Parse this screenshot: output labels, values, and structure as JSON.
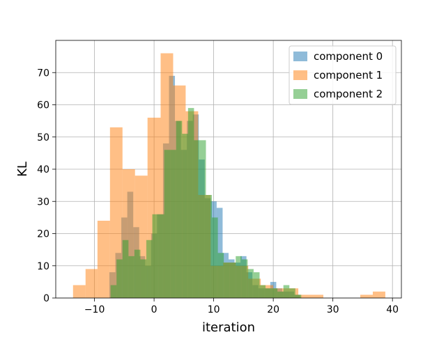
{
  "chart_data": {
    "type": "histogram",
    "xlabel": "iteration",
    "ylabel": "KL",
    "xlim": [
      -16.5,
      41.5
    ],
    "ylim": [
      0,
      80
    ],
    "xticks": [
      -10,
      0,
      10,
      20,
      30,
      40
    ],
    "yticks": [
      0,
      10,
      20,
      30,
      40,
      50,
      60,
      70
    ],
    "grid": true,
    "legend_position": "top-right",
    "series": [
      {
        "name": "component 0",
        "color": "#1f77b4",
        "bins": [
          {
            "x0": -7.5,
            "x1": -6.5,
            "count": 8
          },
          {
            "x0": -6.5,
            "x1": -5.5,
            "count": 14
          },
          {
            "x0": -5.5,
            "x1": -4.5,
            "count": 25
          },
          {
            "x0": -4.5,
            "x1": -3.5,
            "count": 33
          },
          {
            "x0": -3.5,
            "x1": -2.5,
            "count": 22
          },
          {
            "x0": -2.5,
            "x1": -1.5,
            "count": 13
          },
          {
            "x0": -1.5,
            "x1": -0.5,
            "count": 10
          },
          {
            "x0": -0.5,
            "x1": 0.5,
            "count": 20
          },
          {
            "x0": 0.5,
            "x1": 1.5,
            "count": 26
          },
          {
            "x0": 1.5,
            "x1": 2.5,
            "count": 48
          },
          {
            "x0": 2.5,
            "x1": 3.5,
            "count": 69
          },
          {
            "x0": 3.5,
            "x1": 4.5,
            "count": 55
          },
          {
            "x0": 4.5,
            "x1": 5.5,
            "count": 46
          },
          {
            "x0": 5.5,
            "x1": 6.5,
            "count": 55
          },
          {
            "x0": 6.5,
            "x1": 7.5,
            "count": 57
          },
          {
            "x0": 7.5,
            "x1": 8.5,
            "count": 43
          },
          {
            "x0": 8.5,
            "x1": 9.5,
            "count": 31
          },
          {
            "x0": 9.5,
            "x1": 10.5,
            "count": 30
          },
          {
            "x0": 10.5,
            "x1": 11.5,
            "count": 28
          },
          {
            "x0": 11.5,
            "x1": 12.5,
            "count": 14
          },
          {
            "x0": 12.5,
            "x1": 13.5,
            "count": 12
          },
          {
            "x0": 13.5,
            "x1": 14.5,
            "count": 11
          },
          {
            "x0": 14.5,
            "x1": 15.5,
            "count": 13
          },
          {
            "x0": 15.5,
            "x1": 16.5,
            "count": 8
          },
          {
            "x0": 16.5,
            "x1": 17.5,
            "count": 4
          },
          {
            "x0": 17.5,
            "x1": 18.5,
            "count": 3
          },
          {
            "x0": 18.5,
            "x1": 19.5,
            "count": 3
          },
          {
            "x0": 19.5,
            "x1": 20.5,
            "count": 5
          },
          {
            "x0": 20.5,
            "x1": 21.5,
            "count": 3
          },
          {
            "x0": 21.5,
            "x1": 22.5,
            "count": 2
          },
          {
            "x0": 22.5,
            "x1": 23.5,
            "count": 2
          },
          {
            "x0": 23.5,
            "x1": 24.5,
            "count": 1
          }
        ]
      },
      {
        "name": "component 1",
        "color": "#ff7f0e",
        "bins": [
          {
            "x0": -13.6,
            "x1": -11.5,
            "count": 4
          },
          {
            "x0": -11.5,
            "x1": -9.5,
            "count": 9
          },
          {
            "x0": -9.5,
            "x1": -7.4,
            "count": 24
          },
          {
            "x0": -7.4,
            "x1": -5.3,
            "count": 53
          },
          {
            "x0": -5.3,
            "x1": -3.2,
            "count": 40
          },
          {
            "x0": -3.2,
            "x1": -1.1,
            "count": 38
          },
          {
            "x0": -1.1,
            "x1": 1.1,
            "count": 56
          },
          {
            "x0": 1.1,
            "x1": 3.2,
            "count": 76
          },
          {
            "x0": 3.2,
            "x1": 5.3,
            "count": 66
          },
          {
            "x0": 5.3,
            "x1": 7.4,
            "count": 58
          },
          {
            "x0": 7.4,
            "x1": 9.5,
            "count": 32
          },
          {
            "x0": 9.5,
            "x1": 11.6,
            "count": 10
          },
          {
            "x0": 11.6,
            "x1": 13.7,
            "count": 11
          },
          {
            "x0": 13.7,
            "x1": 15.8,
            "count": 10
          },
          {
            "x0": 15.8,
            "x1": 17.9,
            "count": 6
          },
          {
            "x0": 17.9,
            "x1": 20.0,
            "count": 4
          },
          {
            "x0": 20.0,
            "x1": 22.1,
            "count": 3
          },
          {
            "x0": 22.1,
            "x1": 24.2,
            "count": 3
          },
          {
            "x0": 24.2,
            "x1": 26.3,
            "count": 1
          },
          {
            "x0": 26.3,
            "x1": 28.4,
            "count": 1
          },
          {
            "x0": 34.6,
            "x1": 36.7,
            "count": 1
          },
          {
            "x0": 36.7,
            "x1": 38.8,
            "count": 2
          }
        ]
      },
      {
        "name": "component 2",
        "color": "#2ca02c",
        "bins": [
          {
            "x0": -7.3,
            "x1": -6.3,
            "count": 4
          },
          {
            "x0": -6.3,
            "x1": -5.3,
            "count": 12
          },
          {
            "x0": -5.3,
            "x1": -4.3,
            "count": 18
          },
          {
            "x0": -4.3,
            "x1": -3.3,
            "count": 13
          },
          {
            "x0": -3.3,
            "x1": -2.3,
            "count": 15
          },
          {
            "x0": -2.3,
            "x1": -1.3,
            "count": 12
          },
          {
            "x0": -1.3,
            "x1": -0.3,
            "count": 18
          },
          {
            "x0": -0.3,
            "x1": 0.7,
            "count": 26
          },
          {
            "x0": 0.7,
            "x1": 1.7,
            "count": 26
          },
          {
            "x0": 1.7,
            "x1": 2.7,
            "count": 46
          },
          {
            "x0": 2.7,
            "x1": 3.7,
            "count": 46
          },
          {
            "x0": 3.7,
            "x1": 4.7,
            "count": 55
          },
          {
            "x0": 4.7,
            "x1": 5.7,
            "count": 51
          },
          {
            "x0": 5.7,
            "x1": 6.7,
            "count": 59
          },
          {
            "x0": 6.7,
            "x1": 7.7,
            "count": 49
          },
          {
            "x0": 7.7,
            "x1": 8.7,
            "count": 49
          },
          {
            "x0": 8.7,
            "x1": 9.7,
            "count": 32
          },
          {
            "x0": 9.7,
            "x1": 10.7,
            "count": 25
          },
          {
            "x0": 10.7,
            "x1": 11.7,
            "count": 14
          },
          {
            "x0": 11.7,
            "x1": 12.7,
            "count": 11
          },
          {
            "x0": 12.7,
            "x1": 13.7,
            "count": 11
          },
          {
            "x0": 13.7,
            "x1": 14.7,
            "count": 13
          },
          {
            "x0": 14.7,
            "x1": 15.7,
            "count": 12
          },
          {
            "x0": 15.7,
            "x1": 16.7,
            "count": 9
          },
          {
            "x0": 16.7,
            "x1": 17.7,
            "count": 8
          },
          {
            "x0": 17.7,
            "x1": 18.7,
            "count": 4
          },
          {
            "x0": 18.7,
            "x1": 19.7,
            "count": 3
          },
          {
            "x0": 19.7,
            "x1": 20.7,
            "count": 3
          },
          {
            "x0": 20.7,
            "x1": 21.7,
            "count": 2
          },
          {
            "x0": 21.7,
            "x1": 22.7,
            "count": 4
          },
          {
            "x0": 22.7,
            "x1": 23.7,
            "count": 3
          },
          {
            "x0": 23.7,
            "x1": 24.7,
            "count": 1
          }
        ]
      }
    ]
  }
}
